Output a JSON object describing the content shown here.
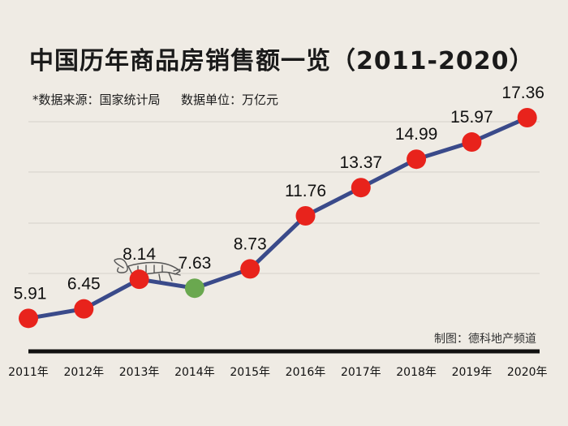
{
  "chart_data": {
    "type": "line",
    "title": "中国历年商品房销售额一览（2011-2020）",
    "subtitle_source": "*数据来源：国家统计局",
    "subtitle_unit": "数据单位：万亿元",
    "credit": "制图：德科地产频道",
    "categories": [
      "2011年",
      "2012年",
      "2013年",
      "2014年",
      "2015年",
      "2016年",
      "2017年",
      "2018年",
      "2019年",
      "2020年"
    ],
    "values": [
      5.91,
      6.45,
      8.14,
      7.63,
      8.73,
      11.76,
      13.37,
      14.99,
      15.97,
      17.36
    ],
    "value_labels": [
      "5.91",
      "6.45",
      "8.14",
      "7.63",
      "8.73",
      "11.76",
      "13.37",
      "14.99",
      "15.97",
      "17.36"
    ],
    "ylim": [
      0,
      20
    ],
    "colors": {
      "line": "#3a4a8a",
      "marker": "#e8231c",
      "highlight_marker": "#6aa84f",
      "axis": "#111111",
      "grid": "#d5d1ca"
    },
    "highlight_index": 3
  }
}
